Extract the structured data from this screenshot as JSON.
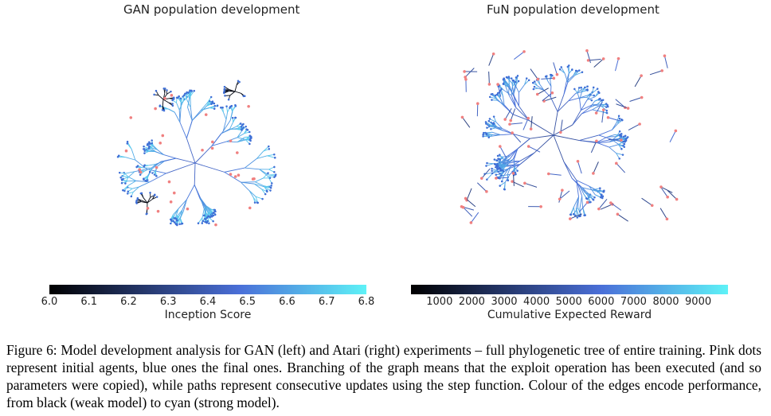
{
  "left_panel": {
    "title": "GAN population development",
    "colorbar": {
      "ticks": [
        "6.0",
        "6.1",
        "6.2",
        "6.3",
        "6.4",
        "6.5",
        "6.6",
        "6.7",
        "6.8"
      ],
      "label": "Inception Score",
      "colors": [
        "#000000",
        "#4a6fd8",
        "#5ef2f7"
      ]
    }
  },
  "right_panel": {
    "title": "FuN population development",
    "colorbar": {
      "ticks": [
        "1000",
        "2000",
        "3000",
        "4000",
        "5000",
        "6000",
        "7000",
        "8000",
        "9000"
      ],
      "label": "Cumulative Expected Reward",
      "colors": [
        "#000000",
        "#4a6fd8",
        "#5ef2f7"
      ]
    }
  },
  "colors": {
    "initial_agent": "#f08080",
    "final_agent": "#3f6fd6",
    "weak_edge": "#000000",
    "strong_edge": "#5ef2f7"
  },
  "caption": {
    "label": "Figure 6:",
    "text": "Model development analysis for GAN (left) and Atari (right) experiments – full phylogenetic tree of entire training. Pink dots represent initial agents, blue ones the final ones. Branching of the graph means that the exploit operation has been executed (and so parameters were copied), while paths represent consecutive updates using the step function. Colour of the edges encode performance, from black (weak model) to cyan (strong model)."
  }
}
